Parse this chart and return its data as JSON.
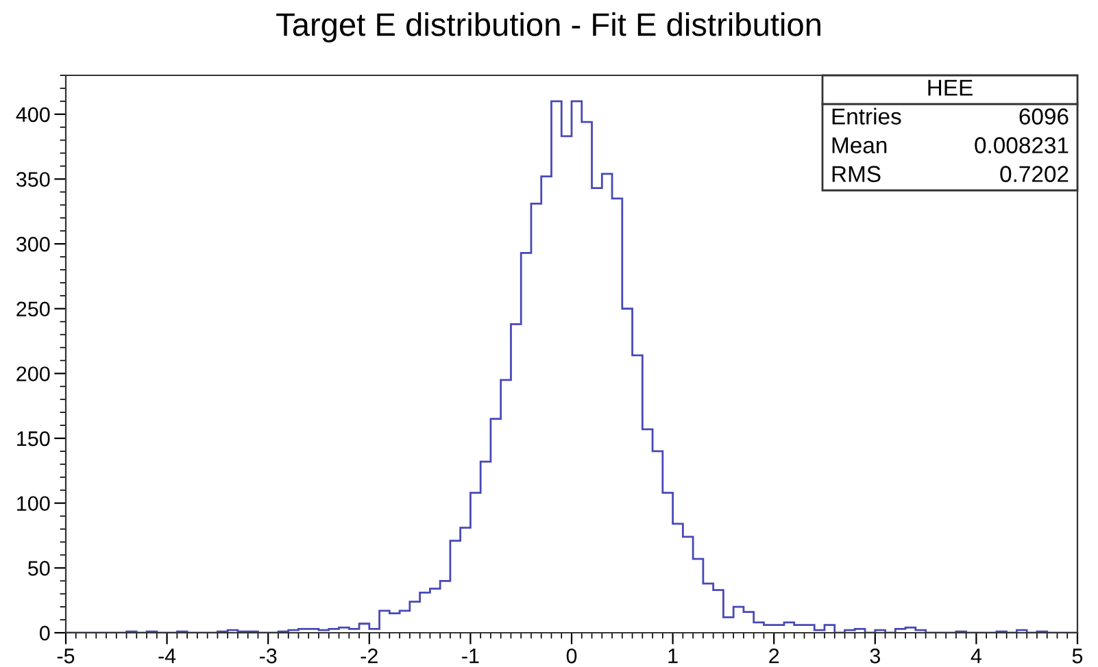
{
  "chart_data": {
    "type": "histogram",
    "title": "Target E distribution - Fit E distribution",
    "bins": [
      -5,
      -4.9,
      -4.8,
      -4.7,
      -4.6,
      -4.5,
      -4.4,
      -4.3,
      -4.2,
      -4.1,
      -4,
      -3.9,
      -3.8,
      -3.7,
      -3.6,
      -3.5,
      -3.4,
      -3.3,
      -3.2,
      -3.1,
      -3,
      -2.9,
      -2.8,
      -2.7,
      -2.6,
      -2.5,
      -2.4,
      -2.3,
      -2.2,
      -2.1,
      -2,
      -1.9,
      -1.8,
      -1.7,
      -1.6,
      -1.5,
      -1.4,
      -1.3,
      -1.2,
      -1.1,
      -1,
      -0.9,
      -0.8,
      -0.7,
      -0.6,
      -0.5,
      -0.4,
      -0.3,
      -0.2,
      -0.1,
      0,
      0.1,
      0.2,
      0.3,
      0.4,
      0.5,
      0.6,
      0.7,
      0.8,
      0.9,
      1,
      1.1,
      1.2,
      1.3,
      1.4,
      1.5,
      1.6,
      1.7,
      1.8,
      1.9,
      2,
      2.1,
      2.2,
      2.3,
      2.4,
      2.5,
      2.6,
      2.7,
      2.8,
      2.9,
      3,
      3.1,
      3.2,
      3.3,
      3.4,
      3.5,
      3.6,
      3.7,
      3.8,
      3.9,
      4,
      4.1,
      4.2,
      4.3,
      4.4,
      4.5,
      4.6,
      4.7,
      4.8,
      4.9,
      5
    ],
    "values": [
      0,
      0,
      0,
      0,
      0,
      0,
      1,
      0,
      1,
      0,
      0,
      1,
      0,
      0,
      0,
      1,
      2,
      1,
      1,
      0,
      0,
      1,
      2,
      3,
      3,
      2,
      3,
      4,
      3,
      7,
      3,
      17,
      15,
      17,
      24,
      31,
      34,
      40,
      71,
      81,
      108,
      132,
      165,
      195,
      238,
      293,
      331,
      352,
      410,
      383,
      410,
      394,
      343,
      354,
      335,
      250,
      214,
      157,
      140,
      108,
      84,
      74,
      57,
      38,
      33,
      12,
      20,
      16,
      8,
      6,
      6,
      8,
      6,
      6,
      2,
      6,
      0,
      2,
      3,
      0,
      2,
      0,
      3,
      4,
      2,
      0,
      0,
      0,
      1,
      0,
      0,
      0,
      1,
      0,
      2,
      0,
      1,
      0,
      0,
      0
    ],
    "color": "#4848b8",
    "xlim": [
      -5,
      5
    ],
    "xticks": [
      -5,
      -4,
      -3,
      -2,
      -1,
      0,
      1,
      2,
      3,
      4,
      5
    ],
    "ylim": [
      0,
      430
    ],
    "yticks": [
      0,
      50,
      100,
      150,
      200,
      250,
      300,
      350,
      400
    ],
    "annotations": [
      "HEE",
      "Entries",
      "6096",
      "Mean",
      "0.008231",
      "RMS",
      "0.7202"
    ]
  }
}
